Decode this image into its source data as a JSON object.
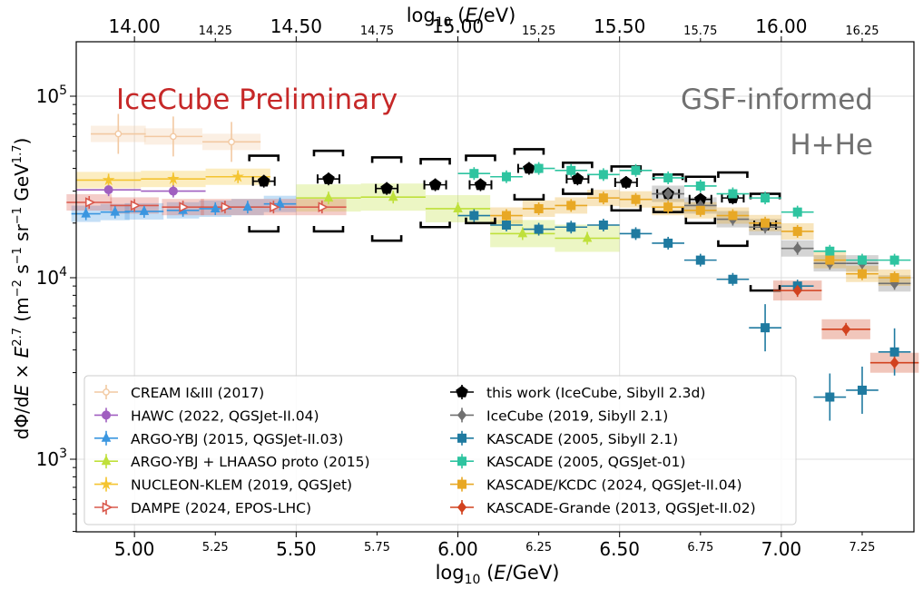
{
  "chart_data": {
    "type": "scatter",
    "top_axis_title": "log10(E/eV)",
    "xlabel": "log10(E/GeV)",
    "ylabel": "dΦ/dE × E^2.7 (m^-2 s^-1 sr^-1 GeV^1.7)",
    "xlim": [
      4.82,
      7.41
    ],
    "ylim_log10": [
      2.6,
      5.3
    ],
    "x_major_ticks": [
      "5.00",
      "5.50",
      "6.00",
      "6.50",
      "7.00"
    ],
    "x_major_values": [
      5.0,
      5.5,
      6.0,
      6.5,
      7.0
    ],
    "x_minor_ticks": [
      "5.25",
      "5.75",
      "6.25",
      "6.75",
      "7.25"
    ],
    "x_minor_values": [
      5.25,
      5.75,
      6.25,
      6.75,
      7.25
    ],
    "top_major_ticks": [
      "14.00",
      "14.50",
      "15.00",
      "15.50",
      "16.00"
    ],
    "top_major_values": [
      14.0,
      14.5,
      15.0,
      15.5,
      16.0
    ],
    "top_minor_ticks": [
      "14.25",
      "14.75",
      "15.25",
      "15.75",
      "16.25"
    ],
    "top_minor_values": [
      14.25,
      14.75,
      15.25,
      15.75,
      16.25
    ],
    "y_ticks": [
      "10^3",
      "10^4",
      "10^5"
    ],
    "y_tick_values": [
      3,
      4,
      5
    ],
    "grid": true,
    "annotations": [
      "IceCube Preliminary",
      "GSF-informed",
      "H+He"
    ],
    "annotation_colors": [
      "#c62828",
      "#707070",
      "#707070"
    ],
    "legend_position": "lower-left",
    "series": [
      {
        "name": "CREAM I&III (2017)",
        "color": "#f2c9a2",
        "marker": "cross-open",
        "points": [
          [
            4.95,
            62000
          ],
          [
            5.12,
            60000
          ],
          [
            5.3,
            56000
          ]
        ]
      },
      {
        "name": "HAWC (2022, QGSJet-II.04)",
        "color": "#a05fc0",
        "marker": "circle",
        "points": [
          [
            4.92,
            30500
          ],
          [
            5.12,
            30000
          ]
        ]
      },
      {
        "name": "ARGO-YBJ (2015, QGSJet-II.03)",
        "color": "#3a96e0",
        "marker": "triangle",
        "points": [
          [
            4.85,
            22500
          ],
          [
            4.94,
            23000
          ],
          [
            5.03,
            23200
          ],
          [
            5.15,
            23500
          ],
          [
            5.25,
            24000
          ],
          [
            5.35,
            24500
          ],
          [
            5.45,
            25500
          ]
        ]
      },
      {
        "name": "ARGO-YBJ + LHAASO proto (2015)",
        "color": "#bfe03a",
        "marker": "triangle",
        "points": [
          [
            5.6,
            27500
          ],
          [
            5.8,
            27800
          ],
          [
            6.0,
            24000
          ],
          [
            6.2,
            17500
          ],
          [
            6.4,
            16500
          ]
        ]
      },
      {
        "name": "NUCLEON-KLEM (2019, QGSJet)",
        "color": "#f4c430",
        "marker": "star",
        "points": [
          [
            4.92,
            34500
          ],
          [
            5.12,
            35000
          ],
          [
            5.32,
            36000
          ]
        ]
      },
      {
        "name": "DAMPE (2024, EPOS-LHC)",
        "color": "#d9584b",
        "marker": "triangle-right-open",
        "points": [
          [
            4.86,
            26000
          ],
          [
            5.0,
            25000
          ],
          [
            5.15,
            24500
          ],
          [
            5.28,
            24500
          ],
          [
            5.43,
            24500
          ],
          [
            5.58,
            24500
          ]
        ]
      },
      {
        "name": "this work (IceCube, Sibyll 2.3d)",
        "color": "#000000",
        "marker": "pentagon",
        "points": [
          [
            5.4,
            34000
          ],
          [
            5.6,
            35000
          ],
          [
            5.78,
            31000
          ],
          [
            5.93,
            32500
          ],
          [
            6.07,
            32500
          ],
          [
            6.22,
            40000
          ],
          [
            6.37,
            35000
          ],
          [
            6.52,
            33500
          ],
          [
            6.65,
            29000
          ],
          [
            6.75,
            27000
          ],
          [
            6.85,
            27500
          ],
          [
            6.95,
            19500
          ]
        ],
        "sys_bands": [
          [
            5.4,
            47000,
            18000
          ],
          [
            5.6,
            50000,
            18000
          ],
          [
            5.78,
            46000,
            16000
          ],
          [
            5.93,
            45000,
            19000
          ],
          [
            6.07,
            47000,
            20000
          ],
          [
            6.22,
            51000,
            27000
          ],
          [
            6.37,
            43000,
            29000
          ],
          [
            6.52,
            41000,
            23500
          ],
          [
            6.65,
            37000,
            23000
          ],
          [
            6.75,
            36000,
            20000
          ],
          [
            6.85,
            38000,
            15000
          ],
          [
            6.95,
            29000,
            8500
          ]
        ]
      },
      {
        "name": "IceCube (2019, Sibyll 2.1)",
        "color": "#707070",
        "marker": "diamond",
        "points": [
          [
            6.65,
            29000
          ],
          [
            6.75,
            25000
          ],
          [
            6.85,
            21000
          ],
          [
            6.95,
            19000
          ],
          [
            7.05,
            14500
          ],
          [
            7.15,
            12000
          ],
          [
            7.25,
            12000
          ],
          [
            7.35,
            9300
          ]
        ]
      },
      {
        "name": "KASCADE (2005, Sibyll 2.1)",
        "color": "#1f7aa0",
        "marker": "square",
        "points": [
          [
            6.05,
            22000
          ],
          [
            6.15,
            19500
          ],
          [
            6.25,
            18500
          ],
          [
            6.35,
            19000
          ],
          [
            6.45,
            19500
          ],
          [
            6.55,
            17500
          ],
          [
            6.65,
            15500
          ],
          [
            6.75,
            12500
          ],
          [
            6.85,
            9800
          ],
          [
            6.95,
            5300
          ],
          [
            7.05,
            9000
          ],
          [
            7.15,
            2200
          ],
          [
            7.25,
            2400
          ],
          [
            7.35,
            3900
          ]
        ]
      },
      {
        "name": "KASCADE (2005, QGSJet-01)",
        "color": "#2ec4a0",
        "marker": "square",
        "points": [
          [
            6.05,
            37500
          ],
          [
            6.15,
            36000
          ],
          [
            6.25,
            40000
          ],
          [
            6.35,
            39000
          ],
          [
            6.45,
            37000
          ],
          [
            6.55,
            39000
          ],
          [
            6.65,
            35500
          ],
          [
            6.75,
            32000
          ],
          [
            6.85,
            29000
          ],
          [
            6.95,
            27500
          ],
          [
            7.05,
            23000
          ],
          [
            7.15,
            14000
          ],
          [
            7.25,
            12500
          ],
          [
            7.35,
            12500
          ]
        ]
      },
      {
        "name": "KASCADE/KCDC (2024, QGSJet-II.04)",
        "color": "#e8a825",
        "marker": "square",
        "points": [
          [
            6.15,
            22000
          ],
          [
            6.25,
            24000
          ],
          [
            6.35,
            25000
          ],
          [
            6.45,
            27500
          ],
          [
            6.55,
            27000
          ],
          [
            6.65,
            24500
          ],
          [
            6.75,
            23500
          ],
          [
            6.85,
            22000
          ],
          [
            6.95,
            20000
          ],
          [
            7.05,
            18000
          ],
          [
            7.15,
            12500
          ],
          [
            7.25,
            10500
          ],
          [
            7.35,
            10000
          ]
        ]
      },
      {
        "name": "KASCADE-Grande (2013, QGSJet-II.02)",
        "color": "#d2421f",
        "marker": "diamond",
        "points": [
          [
            7.05,
            8500
          ],
          [
            7.2,
            5200
          ],
          [
            7.35,
            3400
          ]
        ]
      }
    ]
  }
}
